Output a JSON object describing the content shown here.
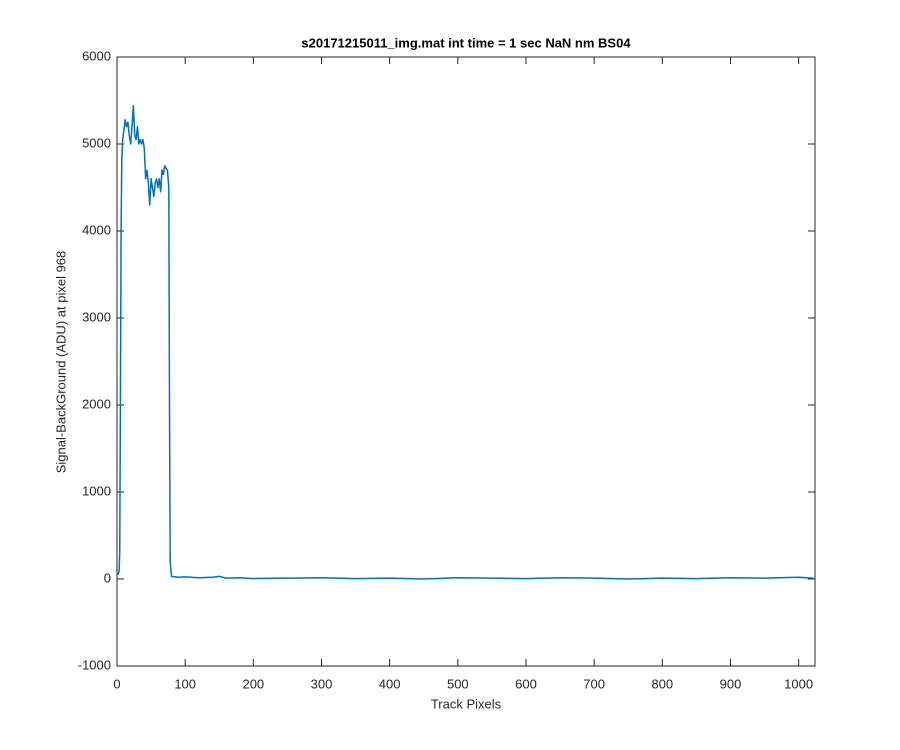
{
  "chart_data": {
    "type": "line",
    "title": "s20171215011_img.mat int time = 1 sec  NaN nm BS04",
    "x_label": "Track Pixels",
    "y_label": "Signal-BackGround (ADU) at pixel 968",
    "xlim": [
      0,
      1024
    ],
    "ylim": [
      -1000,
      6000
    ],
    "xticks": [
      0,
      100,
      200,
      300,
      400,
      500,
      600,
      700,
      800,
      900,
      1000
    ],
    "yticks": [
      -1000,
      0,
      1000,
      2000,
      3000,
      4000,
      5000,
      6000
    ],
    "grid": false,
    "series": [
      {
        "color": "#0072bd",
        "x": [
          1,
          3,
          4,
          5,
          6,
          7,
          8,
          9,
          10,
          12,
          14,
          16,
          18,
          20,
          22,
          24,
          26,
          28,
          30,
          32,
          34,
          36,
          38,
          40,
          42,
          44,
          46,
          48,
          50,
          52,
          54,
          56,
          58,
          60,
          62,
          64,
          66,
          68,
          70,
          72,
          74,
          76,
          77,
          78,
          80,
          90,
          100,
          120,
          140,
          150,
          160,
          180,
          200,
          250,
          300,
          350,
          400,
          450,
          500,
          550,
          600,
          650,
          700,
          750,
          800,
          850,
          900,
          950,
          1000,
          1010,
          1020,
          1024
        ],
        "values": [
          50,
          80,
          300,
          2000,
          4000,
          4800,
          5000,
          5100,
          5150,
          5280,
          5200,
          5250,
          5100,
          5000,
          5200,
          5440,
          5100,
          5050,
          5200,
          5000,
          5050,
          5000,
          5050,
          4950,
          4600,
          4700,
          4550,
          4300,
          4600,
          4500,
          4400,
          4550,
          4600,
          4500,
          4600,
          4450,
          4700,
          4650,
          4750,
          4720,
          4700,
          4500,
          2000,
          200,
          30,
          20,
          25,
          15,
          20,
          30,
          10,
          15,
          5,
          10,
          15,
          5,
          10,
          0,
          15,
          10,
          5,
          15,
          10,
          0,
          10,
          5,
          15,
          10,
          20,
          15,
          10,
          0
        ]
      }
    ]
  }
}
